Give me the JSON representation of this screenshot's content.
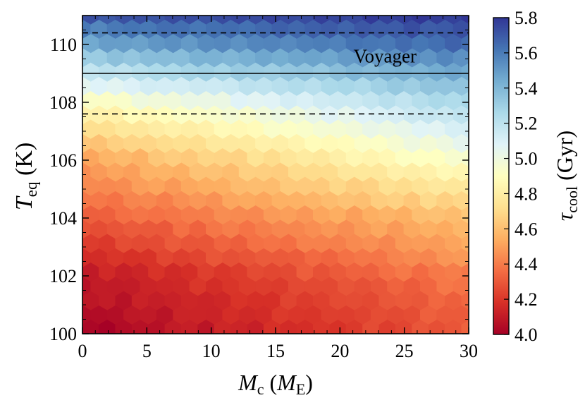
{
  "chart_data": {
    "type": "heatmap",
    "subtype": "hexbin",
    "title": "",
    "xlabel": {
      "main": "M",
      "sub": "c",
      "unit_open": " (",
      "unit_main": "M",
      "unit_sub": "E",
      "unit_close": ")"
    },
    "ylabel": {
      "main": "T",
      "sub": "eq",
      "unit": " (K)"
    },
    "xlim": [
      0,
      30
    ],
    "ylim": [
      100,
      111
    ],
    "x_ticks": [
      0,
      5,
      10,
      15,
      20,
      25,
      30
    ],
    "y_ticks": [
      100,
      102,
      104,
      106,
      108,
      110
    ],
    "x_tick_labels": [
      "0",
      "5",
      "10",
      "15",
      "20",
      "25",
      "30"
    ],
    "y_tick_labels": [
      "100",
      "102",
      "104",
      "106",
      "108",
      "110"
    ],
    "colorbar": {
      "label": {
        "main": "τ",
        "sub": "cool",
        "unit": " (Gyr)"
      },
      "range": [
        4.0,
        5.8
      ],
      "ticks": [
        4.0,
        4.2,
        4.4,
        4.6,
        4.8,
        5.0,
        5.2,
        5.4,
        5.6,
        5.8
      ],
      "tick_labels": [
        "4.0",
        "4.2",
        "4.4",
        "4.6",
        "4.8",
        "5.0",
        "5.2",
        "5.4",
        "5.6",
        "5.8"
      ],
      "colormap": "RdYlBu",
      "colormap_stops": [
        "#a50026",
        "#d73027",
        "#f46d43",
        "#fdae61",
        "#fee090",
        "#ffffbf",
        "#e0f3f8",
        "#abd9e9",
        "#74add1",
        "#4575b4",
        "#313695"
      ]
    },
    "trend_samples": [
      {
        "t_eq": 100,
        "mc0": 4.0,
        "mc30": 4.3
      },
      {
        "t_eq": 102,
        "mc0": 4.1,
        "mc30": 4.4
      },
      {
        "t_eq": 104,
        "mc0": 4.3,
        "mc30": 4.6
      },
      {
        "t_eq": 106,
        "mc0": 4.5,
        "mc30": 4.95
      },
      {
        "t_eq": 108,
        "mc0": 4.9,
        "mc30": 5.25
      },
      {
        "t_eq": 110,
        "mc0": 5.45,
        "mc30": 5.65
      },
      {
        "t_eq": 111,
        "mc0": 5.7,
        "mc30": 5.8
      }
    ],
    "reference_lines": [
      {
        "name": "voyager-line",
        "y": 109.0,
        "style": "solid"
      },
      {
        "name": "voyager-upper-bound",
        "y": 110.4,
        "style": "dashed"
      },
      {
        "name": "voyager-lower-bound",
        "y": 107.6,
        "style": "dashed"
      }
    ],
    "annotations": [
      {
        "text": "Voyager",
        "x": 23.5,
        "y": 109.6
      }
    ]
  }
}
